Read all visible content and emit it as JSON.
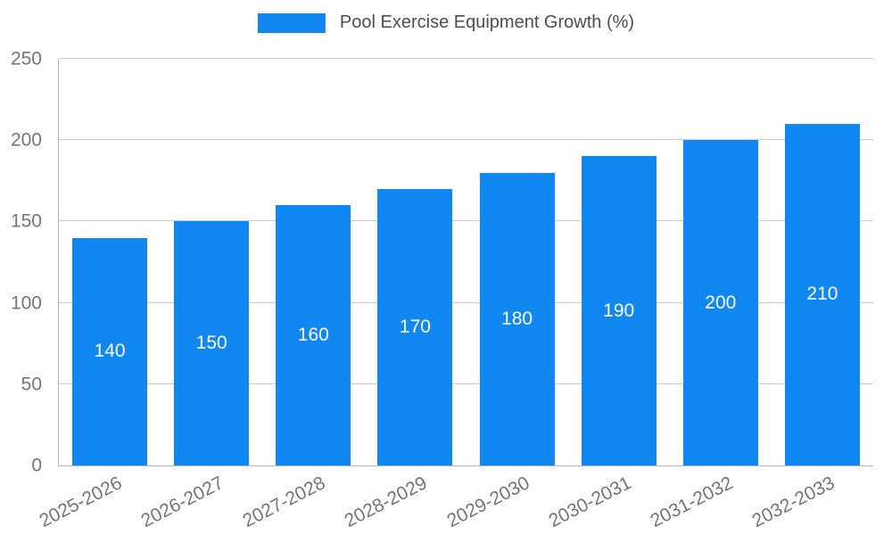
{
  "legend": {
    "label": "Pool Exercise Equipment Growth (%)"
  },
  "colors": {
    "bar": "#1187f2",
    "axis_text": "#757575",
    "gridline": "#cccccc",
    "axis_line": "#b5b5b5",
    "value_label_text": "#ffffff",
    "legend_text": "#4d4d4d",
    "background": "#ffffff"
  },
  "chart_data": {
    "type": "bar",
    "title": "Pool Exercise Equipment Growth (%)",
    "categories": [
      "2025-2026",
      "2026-2027",
      "2027-2028",
      "2028-2029",
      "2029-2030",
      "2030-2031",
      "2031-2032",
      "2032-2033"
    ],
    "values": [
      140,
      150,
      160,
      170,
      180,
      190,
      200,
      210
    ],
    "xlabel": "",
    "ylabel": "",
    "ylim": [
      0,
      250
    ],
    "yticks": [
      0,
      50,
      100,
      150,
      200,
      250
    ],
    "grid": true,
    "legend_position": "top-center",
    "bar_color": "#1187f2",
    "data_labels_position": "inside-center",
    "x_tick_rotation_deg": -27
  }
}
